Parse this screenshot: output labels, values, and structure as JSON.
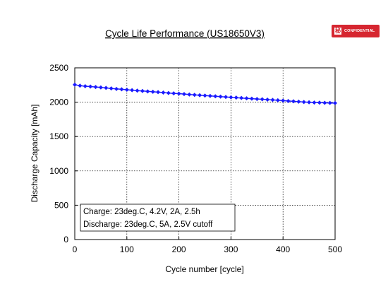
{
  "badge": {
    "text": "CONFIDENTIAL",
    "color": "#d62630"
  },
  "chart_data": {
    "type": "line",
    "title": "Cycle Life Performance (US18650V3)",
    "xlabel": "Cycle number [cycle]",
    "ylabel": "Discharge Capacity [mAh]",
    "xlim": [
      0,
      500
    ],
    "ylim": [
      0,
      2500
    ],
    "xticks": [
      0,
      100,
      200,
      300,
      400,
      500
    ],
    "yticks": [
      0,
      500,
      1000,
      1500,
      2000,
      2500
    ],
    "grid": true,
    "grid_style": "dotted",
    "series": [
      {
        "color": "#1a1aff",
        "marker": "diamond",
        "x": [
          0,
          10,
          20,
          30,
          40,
          50,
          60,
          70,
          80,
          90,
          100,
          110,
          120,
          130,
          140,
          150,
          160,
          170,
          180,
          190,
          200,
          210,
          220,
          230,
          240,
          250,
          260,
          270,
          280,
          290,
          300,
          310,
          320,
          330,
          340,
          350,
          360,
          370,
          380,
          390,
          400,
          410,
          420,
          430,
          440,
          450,
          460,
          470,
          480,
          490,
          500
        ],
        "y": [
          2255,
          2240,
          2233,
          2227,
          2221,
          2215,
          2208,
          2200,
          2193,
          2187,
          2181,
          2175,
          2168,
          2163,
          2157,
          2151,
          2146,
          2140,
          2134,
          2128,
          2124,
          2118,
          2112,
          2107,
          2101,
          2096,
          2091,
          2086,
          2081,
          2076,
          2071,
          2066,
          2061,
          2056,
          2051,
          2046,
          2042,
          2037,
          2033,
          2028,
          2023,
          2017,
          2012,
          2007,
          2002,
          1998,
          1995,
          1993,
          1991,
          1989,
          1987
        ]
      }
    ],
    "annotations": [
      "Charge: 23deg.C, 4.2V, 2A, 2.5h",
      "Discharge: 23deg.C, 5A, 2.5V cutoff"
    ]
  }
}
